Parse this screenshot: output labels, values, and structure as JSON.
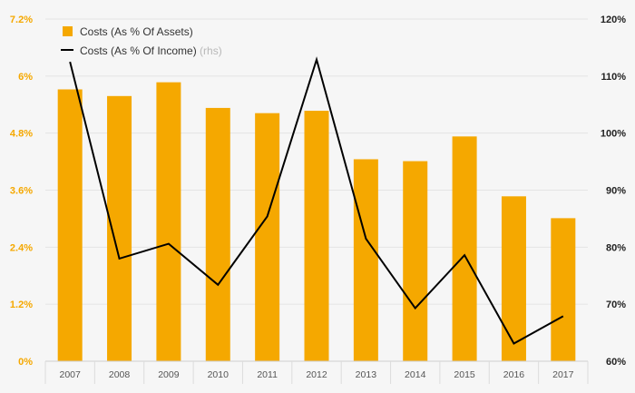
{
  "chart_data": {
    "type": "bar",
    "categories": [
      "2007",
      "2008",
      "2009",
      "2010",
      "2011",
      "2012",
      "2013",
      "2014",
      "2015",
      "2016",
      "2017"
    ],
    "series": [
      {
        "name": "Costs (As % Of Assets)",
        "type": "bar",
        "axis": "left",
        "color": "#f5a800",
        "values": [
          5.72,
          5.58,
          5.87,
          5.33,
          5.22,
          5.27,
          4.25,
          4.21,
          4.73,
          3.47,
          3.01
        ]
      },
      {
        "name": "Costs (As % Of Income)",
        "name_note": "(rhs)",
        "type": "line",
        "axis": "right",
        "color": "#000000",
        "values": [
          112.5,
          78.0,
          80.6,
          73.4,
          85.4,
          112.9,
          81.5,
          69.3,
          78.6,
          63.1,
          67.9
        ]
      }
    ],
    "y_left": {
      "ylim": [
        0,
        7.2
      ],
      "ticks": [
        0,
        1.2,
        2.4,
        3.6,
        4.8,
        6,
        7.2
      ],
      "tick_labels": [
        "0%",
        "1.2%",
        "2.4%",
        "3.6%",
        "4.8%",
        "6%",
        "7.2%"
      ]
    },
    "y_right": {
      "ylim": [
        60,
        120
      ],
      "ticks": [
        60,
        70,
        80,
        90,
        100,
        110,
        120
      ],
      "tick_labels": [
        "60%",
        "70%",
        "80%",
        "90%",
        "100%",
        "110%",
        "120%"
      ]
    },
    "grid": "horizontal",
    "legend": "top-left"
  }
}
